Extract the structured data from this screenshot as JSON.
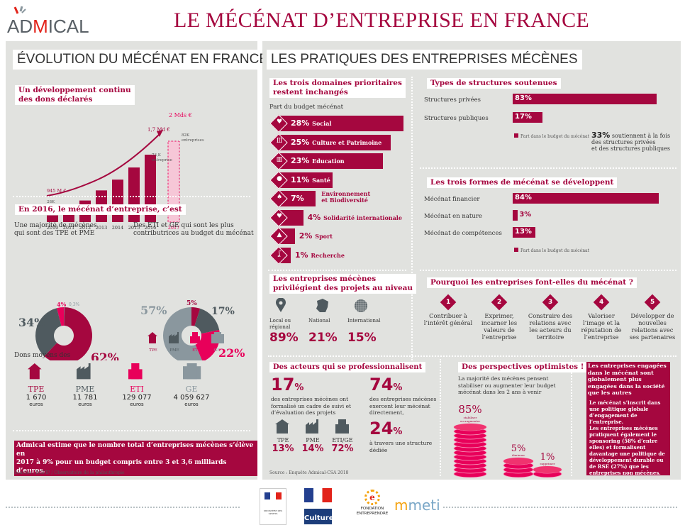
{
  "header": {
    "logo_text_pre": "AD",
    "logo_text_m": "M",
    "logo_text_post": "ICAL",
    "title": "LE MÉCÉNAT D’ENTREPRISE EN FRANCE"
  },
  "colors": {
    "brand": "#a5073f",
    "pink": "#e8005a",
    "dark_gray": "#4f5a5f",
    "light_gray": "#8a979e",
    "panel_bg": "#e1e2df"
  },
  "left": {
    "section_title": "ÉVOLUTION DU MÉCÉNAT EN FRANCE",
    "growth_label_1": "Un développement continu",
    "growth_label_2": "des dons déclarés",
    "in2016_label": "En 2016, le mécénat d’entreprise, c’est",
    "majority_text_1": "Une majorité de mécènes",
    "majority_text_2": "qui sont des TPE et PME",
    "contrib_text_1": "Des ETI et GE qui sont les plus",
    "contrib_text_2": "contributrices au budget du mécénat",
    "legend": [
      "TPE",
      "PME",
      "ETI",
      "GE"
    ],
    "dons_moyens_label": "Dons moyens des",
    "dons": [
      {
        "type": "TPE",
        "amount": "1 670",
        "unit": "euros"
      },
      {
        "type": "PME",
        "amount": "11 781",
        "unit": "euros"
      },
      {
        "type": "ETI",
        "amount": "129 077",
        "unit": "euros"
      },
      {
        "type": "GE",
        "amount": "4 059 627",
        "unit": "euros"
      }
    ],
    "estimate_line_1": "Admical estime que le nombre total d’entreprises mécènes s’élève en",
    "estimate_line_2": "2017 à 9% pour un budget compris entre 3 et 3,6 milliards d’euros.",
    "sources": "Sources : DGFIP / Observatoire de la philanthropie"
  },
  "chart_data": [
    {
      "type": "bar",
      "title": "Un développement continu des dons déclarés",
      "categories": [
        "2010",
        "2011",
        "2012",
        "2013",
        "2014",
        "2015",
        "2016",
        "2017"
      ],
      "values": [
        1,
        1.7,
        3.2,
        4.7,
        6.3,
        8.1,
        10,
        12
      ],
      "estimated": [
        false,
        false,
        false,
        false,
        false,
        false,
        false,
        true
      ],
      "annotations": {
        "start_amount": "945 M €",
        "amount_2016": "1,7 Md €",
        "amount_2017": "2 Mds €",
        "companies_2010": "28K entreprises",
        "companies_2016": "73,K entreprise",
        "companies_2017": "82K entreprises"
      }
    },
    {
      "type": "pie",
      "title": "Une majorité de mécènes qui sont des TPE et PME",
      "labels": [
        "TPE",
        "PME",
        "ETI",
        "GE"
      ],
      "values": [
        62,
        34,
        4,
        0.3
      ],
      "display": [
        "62%",
        "34%",
        "4%",
        "0,3%"
      ]
    },
    {
      "type": "pie",
      "title": "Des ETI et GE qui sont les plus contributrices au budget du mécénat",
      "labels": [
        "TPE",
        "PME",
        "ETI",
        "GE"
      ],
      "values": [
        5,
        17,
        22,
        57
      ],
      "display": [
        "5%",
        "17%",
        "22%",
        "57%"
      ]
    },
    {
      "type": "bar",
      "title": "Les trois domaines prioritaires restent inchangés",
      "subtitle": "Part du budget mécénat",
      "categories": [
        "Social",
        "Culture et Patrimoine",
        "Education",
        "Santé",
        "Environnement et Biodiversité",
        "Solidarité internationale",
        "Sport",
        "Recherche"
      ],
      "values": [
        28,
        25,
        23,
        11,
        7,
        4,
        2,
        1
      ]
    },
    {
      "type": "bar",
      "title": "Types de structures soutenues",
      "categories": [
        "Structures privées",
        "Structures publiques"
      ],
      "values": [
        83,
        17
      ]
    },
    {
      "type": "bar",
      "title": "Les trois formes de mécénat se développent",
      "categories": [
        "Mécénat financier",
        "Mécénat en nature",
        "Mécénat de compétences"
      ],
      "values": [
        84,
        3,
        13
      ]
    },
    {
      "type": "bar",
      "title": "Des perspectives optimistes !",
      "categories": [
        "stabiliser ou augmenter",
        "diminuer",
        "supprimer"
      ],
      "values": [
        85,
        5,
        1
      ]
    }
  ],
  "right": {
    "section_title": "LES PRATIQUES DES ENTREPRISES MÉCÈNES",
    "domains_label_1": "Les trois domaines prioritaires",
    "domains_label_2": "restent inchangés",
    "domains_sub": "Part du budget mécénat",
    "domains": [
      {
        "pct": "28%",
        "name": "Social",
        "icon": "heart-icon",
        "glyph": "♥"
      },
      {
        "pct": "25%",
        "name": "Culture et Patrimoine",
        "icon": "museum-icon",
        "glyph": "Ⅲ"
      },
      {
        "pct": "23%",
        "name": "Education",
        "icon": "books-icon",
        "glyph": "▥"
      },
      {
        "pct": "11%",
        "name": "Santé",
        "icon": "pill-icon",
        "glyph": "●"
      },
      {
        "pct": "7%",
        "name": "Environnement",
        "name2": "et Biodiversité",
        "icon": "leaf-icon",
        "glyph": "♠"
      },
      {
        "pct": "4%",
        "name": "Solidarité internationale",
        "icon": "hands-heart-icon",
        "glyph": "♥"
      },
      {
        "pct": "2%",
        "name": "Sport",
        "icon": "sneaker-icon",
        "glyph": "▲"
      },
      {
        "pct": "1%",
        "name": "Recherche",
        "icon": "microscope-icon",
        "glyph": "ʆ"
      }
    ],
    "structures_label": "Types de structures soutenues",
    "structures": [
      {
        "name": "Structures privées",
        "pct": "83%"
      },
      {
        "name": "Structures publiques",
        "pct": "17%"
      }
    ],
    "legend_budget": "Part dans le budget du mécénat",
    "both_pct": "33%",
    "both_text_1": "soutiennent à la fois",
    "both_text_2": "des structures privées",
    "both_text_3": "et des structures publiques",
    "forms_label": "Les trois formes de mécénat se développent",
    "forms": [
      {
        "name": "Mécénat financier",
        "pct": "84%"
      },
      {
        "name": "Mécénat en nature",
        "pct": "3%"
      },
      {
        "name": "Mécénat de compétences",
        "pct": "13%"
      }
    ],
    "levels_label_1": "Les entreprises mécènes",
    "levels_label_2": "privilégient des projets au niveau",
    "levels": [
      {
        "name": "Local ou",
        "name2": "régional",
        "pct": "89%"
      },
      {
        "name": "National",
        "name2": "",
        "pct": "21%"
      },
      {
        "name": "International",
        "name2": "",
        "pct": "15%"
      }
    ],
    "why_label": "Pourquoi les entreprises font-elles du mécénat ?",
    "reasons": [
      {
        "n": "1",
        "text": "Contribuer à l’intérêt général"
      },
      {
        "n": "2",
        "text": "Exprimer, incarner les valeurs de l’entreprise"
      },
      {
        "n": "3",
        "text": "Construire des relations avec les acteurs du territoire"
      },
      {
        "n": "4",
        "text": "Valoriser l’image et la réputation de l’entreprise"
      },
      {
        "n": "5",
        "text": "Développer de nouvelles relations avec ses partenaires"
      }
    ],
    "pro_label": "Des acteurs qui se professionnalisent",
    "pro_17": "17",
    "pro_17_text": "des entreprises mécènes ont formalisé un cadre de suivi et d’évaluation des projets",
    "pro_types": [
      {
        "name": "TPE",
        "pct": "13%"
      },
      {
        "name": "PME",
        "pct": "14%"
      },
      {
        "name": "ETI/GE",
        "pct": "72%"
      }
    ],
    "pro_74": "74",
    "pro_74_text": "des entreprises mécènes exercent leur mécénat directement,",
    "pro_24": "24",
    "pro_24_text": "à travers une structure dédiée",
    "pct_sign": "%",
    "source": "Source : Enquête Admical-CSA 2018",
    "persp_label": "Des perspectives optimistes !",
    "persp_text": "La majorité des mécènes pensent stabiliser ou augmenter leur budget mécénat dans les 2 ans à venir",
    "persp": [
      {
        "pct": "85%",
        "label": "stabiliser ou augmenter"
      },
      {
        "pct": "5%",
        "label": "diminuer"
      },
      {
        "pct": "1%",
        "label": "supprimer"
      }
    ],
    "engaged_title": "Les entreprises engagées dans le mécénat sont globalement plus engagées dans la société que les autres",
    "engaged_body_1": "Le mécénat s’inscrit dans une politique globale d’engagement de l’entreprise.",
    "engaged_body_2": "Les entreprises mécènes pratiquent également le sponsoring (58% d’entre elles) et formalisent davantage une politique de développement durable ou de RSE (27%) que les entreprises non mécènes."
  },
  "footer": {
    "partners": [
      "Ministère des Sports",
      "Culture",
      "Fondation Entreprendre",
      "meti"
    ],
    "culture_label": "Culture",
    "fondation_1": "FONDATION",
    "fondation_2": "ENTREPRENDRE",
    "meti_label": "meti",
    "sports_label": "MINISTÈRE DES SPORTS"
  }
}
